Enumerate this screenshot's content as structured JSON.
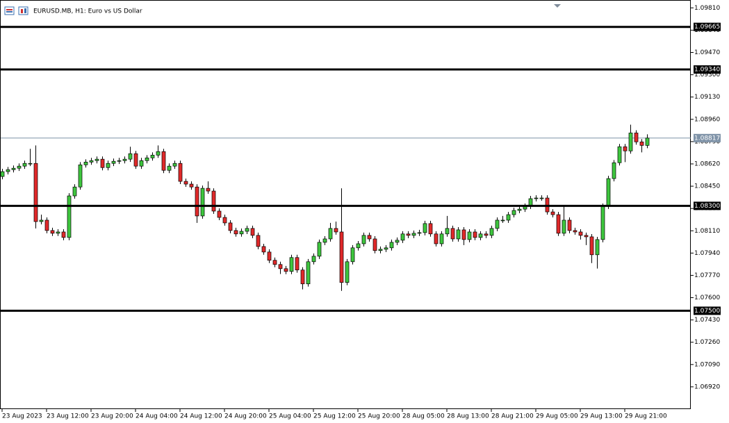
{
  "chart_data": {
    "type": "candlestick",
    "title": "EURUSD.MB, H1:  Euro vs US Dollar",
    "categories": [
      "23 Aug 2023",
      null,
      null,
      null,
      null,
      null,
      null,
      null,
      "23 Aug 12:00",
      null,
      null,
      null,
      null,
      null,
      null,
      null,
      "23 Aug 20:00",
      null,
      null,
      null,
      null,
      null,
      null,
      null,
      "24 Aug 04:00",
      null,
      null,
      null,
      null,
      null,
      null,
      null,
      "24 Aug 12:00",
      null,
      null,
      null,
      null,
      null,
      null,
      null,
      "24 Aug 20:00",
      null,
      null,
      null,
      null,
      null,
      null,
      null,
      "25 Aug 04:00",
      null,
      null,
      null,
      null,
      null,
      null,
      null,
      "25 Aug 12:00",
      null,
      null,
      null,
      null,
      null,
      null,
      null,
      "25 Aug 20:00",
      null,
      null,
      null,
      null,
      null,
      null,
      null,
      "28 Aug 05:00",
      null,
      null,
      null,
      null,
      null,
      null,
      null,
      "28 Aug 13:00",
      null,
      null,
      null,
      null,
      null,
      null,
      null,
      "28 Aug 21:00",
      null,
      null,
      null,
      null,
      null,
      null,
      null,
      "29 Aug 05:00",
      null,
      null,
      null,
      null,
      null,
      null,
      null,
      "29 Aug 13:00",
      null,
      null,
      null,
      null,
      null,
      null,
      null,
      "29 Aug 21:00",
      null,
      null,
      null,
      null
    ],
    "open": [
      1.08524,
      1.08561,
      1.08576,
      1.08587,
      1.08603,
      1.08624,
      1.08624,
      1.0818,
      1.08191,
      1.08112,
      1.08091,
      1.08101,
      1.08059,
      1.08376,
      1.08444,
      1.08613,
      1.08634,
      1.08645,
      1.08656,
      1.08592,
      1.08624,
      1.0864,
      1.08645,
      1.08656,
      1.08698,
      1.08603,
      1.08645,
      1.08666,
      1.08687,
      1.08714,
      1.08571,
      1.08603,
      1.08624,
      1.08487,
      1.08466,
      1.08444,
      1.08223,
      1.08434,
      1.08413,
      1.0826,
      1.08212,
      1.0817,
      1.08112,
      1.08086,
      1.08106,
      1.08128,
      1.08075,
      1.0799,
      1.07948,
      1.07885,
      1.07853,
      1.07821,
      1.078,
      1.07906,
      1.07811,
      1.07705,
      1.07874,
      1.07916,
      1.08022,
      1.08048,
      1.08128,
      1.08101,
      1.07716,
      1.07874,
      1.0798,
      1.08011,
      1.08075,
      1.08048,
      1.07959,
      1.07969,
      1.0798,
      1.08022,
      1.08038,
      1.08086,
      1.08075,
      1.08091,
      1.08096,
      1.08165,
      1.08086,
      1.08011,
      1.08086,
      1.08128,
      1.08048,
      1.08117,
      1.08043,
      1.08101,
      1.08059,
      1.08086,
      1.08075,
      1.08128,
      1.08191,
      1.08191,
      1.08233,
      1.08265,
      1.08275,
      1.08297,
      1.08355,
      1.0836,
      1.0836,
      1.08254,
      1.08233,
      1.08091,
      1.08191,
      1.08112,
      1.08101,
      1.08075,
      1.08064,
      1.07927,
      1.08043,
      1.08297,
      1.08508,
      1.08629,
      1.08751,
      1.08719,
      1.08856,
      1.08788,
      1.08761
    ],
    "high": [
      1.08582,
      1.08597,
      1.08608,
      1.08624,
      1.08645,
      1.08735,
      1.08761,
      1.08233,
      1.08212,
      1.08133,
      1.08122,
      1.08122,
      1.08397,
      1.08465,
      1.08634,
      1.08655,
      1.08666,
      1.08677,
      1.08677,
      1.08645,
      1.08661,
      1.08666,
      1.08677,
      1.08751,
      1.08719,
      1.08666,
      1.08687,
      1.08708,
      1.08761,
      1.08735,
      1.08624,
      1.08645,
      1.08645,
      1.08508,
      1.08487,
      1.08465,
      1.08455,
      1.08487,
      1.08434,
      1.08281,
      1.08233,
      1.08191,
      1.08133,
      1.08127,
      1.08149,
      1.08149,
      1.08096,
      1.08011,
      1.07969,
      1.07906,
      1.07874,
      1.07842,
      1.07927,
      1.07927,
      1.07832,
      1.07895,
      1.07937,
      1.08043,
      1.08069,
      1.0817,
      1.0818,
      1.08434,
      1.07895,
      1.08001,
      1.08032,
      1.08096,
      1.08096,
      1.08069,
      1.0799,
      1.08001,
      1.08043,
      1.08059,
      1.08107,
      1.08107,
      1.08112,
      1.08117,
      1.08186,
      1.08186,
      1.08107,
      1.08107,
      1.08223,
      1.08149,
      1.08138,
      1.08138,
      1.08122,
      1.08122,
      1.08107,
      1.08107,
      1.08149,
      1.08212,
      1.08223,
      1.08254,
      1.08286,
      1.08296,
      1.08318,
      1.08376,
      1.08381,
      1.08381,
      1.08381,
      1.08275,
      1.08254,
      1.08297,
      1.08212,
      1.08133,
      1.08122,
      1.08096,
      1.08085,
      1.08064,
      1.08318,
      1.08529,
      1.0865,
      1.08772,
      1.08772,
      1.08919,
      1.08877,
      1.08809,
      1.08846
    ],
    "low": [
      1.08503,
      1.0854,
      1.08555,
      1.08566,
      1.08582,
      1.08603,
      1.08128,
      1.08159,
      1.08091,
      1.0807,
      1.0807,
      1.08038,
      1.08038,
      1.08355,
      1.08423,
      1.08592,
      1.08613,
      1.08624,
      1.08571,
      1.08571,
      1.08603,
      1.08619,
      1.08624,
      1.08635,
      1.08582,
      1.08582,
      1.08624,
      1.08645,
      1.08666,
      1.0855,
      1.0855,
      1.08582,
      1.08466,
      1.08445,
      1.08423,
      1.0817,
      1.08202,
      1.08392,
      1.08239,
      1.08191,
      1.08149,
      1.08091,
      1.08065,
      1.08065,
      1.08085,
      1.08054,
      1.07969,
      1.07927,
      1.07864,
      1.07832,
      1.0778,
      1.07779,
      1.07779,
      1.0779,
      1.07663,
      1.07684,
      1.07853,
      1.07895,
      1.08001,
      1.08027,
      1.0808,
      1.07652,
      1.07695,
      1.07853,
      1.07959,
      1.0799,
      1.08027,
      1.07938,
      1.07938,
      1.07948,
      1.07959,
      1.08001,
      1.08017,
      1.08054,
      1.08054,
      1.0807,
      1.08075,
      1.08065,
      1.0799,
      1.0799,
      1.08065,
      1.08027,
      1.08027,
      1.08001,
      1.08022,
      1.08038,
      1.08038,
      1.08054,
      1.08054,
      1.08107,
      1.0817,
      1.0817,
      1.08212,
      1.08244,
      1.08254,
      1.08276,
      1.08334,
      1.08339,
      1.08233,
      1.08212,
      1.0807,
      1.0807,
      1.08091,
      1.0808,
      1.08043,
      1.08001,
      1.07864,
      1.07822,
      1.08022,
      1.08276,
      1.08487,
      1.08608,
      1.08634,
      1.08698,
      1.08767,
      1.08708,
      1.0874
    ],
    "close": [
      1.08561,
      1.08576,
      1.08587,
      1.08603,
      1.08624,
      1.08624,
      1.0818,
      1.08191,
      1.08112,
      1.08091,
      1.08101,
      1.08059,
      1.08376,
      1.08444,
      1.08613,
      1.08634,
      1.08645,
      1.08656,
      1.08592,
      1.08624,
      1.0864,
      1.08645,
      1.08656,
      1.08698,
      1.08603,
      1.08645,
      1.08666,
      1.08687,
      1.08714,
      1.08571,
      1.08603,
      1.08624,
      1.08487,
      1.08466,
      1.08444,
      1.08223,
      1.08434,
      1.08413,
      1.0826,
      1.08212,
      1.0817,
      1.08112,
      1.08086,
      1.08106,
      1.08128,
      1.08075,
      1.0799,
      1.07948,
      1.07885,
      1.07853,
      1.07821,
      1.078,
      1.07906,
      1.07811,
      1.07705,
      1.07874,
      1.07916,
      1.08022,
      1.08048,
      1.08128,
      1.08101,
      1.07716,
      1.07874,
      1.0798,
      1.08011,
      1.08075,
      1.08048,
      1.07959,
      1.07969,
      1.0798,
      1.08022,
      1.08038,
      1.08086,
      1.08075,
      1.08091,
      1.08096,
      1.08165,
      1.08086,
      1.08011,
      1.08086,
      1.08128,
      1.08048,
      1.08117,
      1.08043,
      1.08101,
      1.08059,
      1.08086,
      1.08075,
      1.08128,
      1.08191,
      1.08191,
      1.08233,
      1.08265,
      1.08275,
      1.08297,
      1.08355,
      1.0836,
      1.0836,
      1.08254,
      1.08233,
      1.08091,
      1.08191,
      1.08112,
      1.08101,
      1.08075,
      1.08064,
      1.07927,
      1.08043,
      1.08297,
      1.08508,
      1.08629,
      1.08751,
      1.08719,
      1.08856,
      1.08788,
      1.08761,
      1.08817
    ],
    "up_color": "#3ec63e",
    "down_color": "#e0292a",
    "ylim": [
      1.0675,
      1.0987
    ],
    "yticks": [
      {
        "value": 1.0981,
        "label": "1.09810"
      },
      {
        "value": 1.0964,
        "label": "1.09640"
      },
      {
        "value": 1.0947,
        "label": "1.09470"
      },
      {
        "value": 1.093,
        "label": "1.09300"
      },
      {
        "value": 1.0913,
        "label": "1.09130"
      },
      {
        "value": 1.0896,
        "label": "1.08960"
      },
      {
        "value": 1.0879,
        "label": "1.08790"
      },
      {
        "value": 1.0862,
        "label": "1.08620"
      },
      {
        "value": 1.0845,
        "label": "1.08450"
      },
      {
        "value": 1.0828,
        "label": "1.08280"
      },
      {
        "value": 1.0811,
        "label": "1.08110"
      },
      {
        "value": 1.0794,
        "label": "1.07940"
      },
      {
        "value": 1.0777,
        "label": "1.07770"
      },
      {
        "value": 1.076,
        "label": "1.07600"
      },
      {
        "value": 1.0743,
        "label": "1.07430"
      },
      {
        "value": 1.0726,
        "label": "1.07260"
      },
      {
        "value": 1.0709,
        "label": "1.07090"
      },
      {
        "value": 1.0692,
        "label": "1.06920"
      }
    ],
    "hlines": [
      {
        "value": 1.09665,
        "label": "1.09665"
      },
      {
        "value": 1.0934,
        "label": "1.09340"
      },
      {
        "value": 1.083,
        "label": "1.08300"
      },
      {
        "value": 1.075,
        "label": "1.07500"
      }
    ],
    "current_price": {
      "value": 1.08817,
      "label": "1.08817"
    }
  }
}
